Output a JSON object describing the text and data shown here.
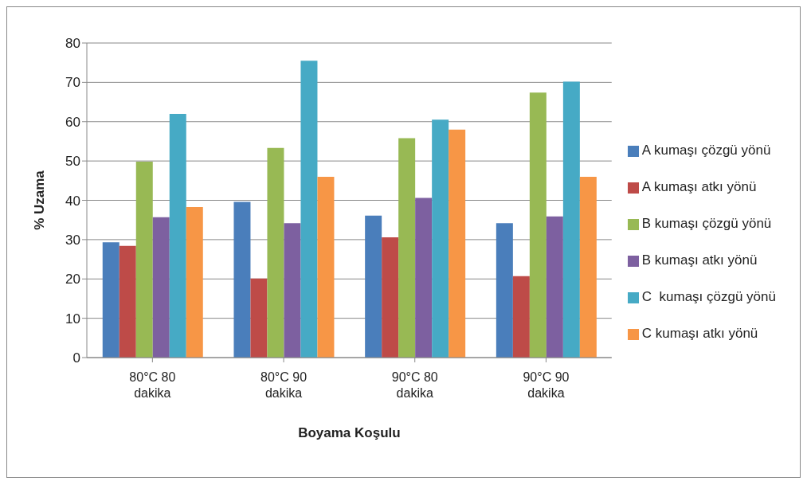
{
  "chart_data": {
    "type": "bar",
    "xlabel": "Boyama Koşulu",
    "ylabel": "% Uzama",
    "categories": [
      "80°C 80 dakika",
      "80°C 90 dakika",
      "90°C 80 dakika",
      "90°C 90 dakika"
    ],
    "series": [
      {
        "name": "A kumaşı çözgü yönü",
        "color": "#4a7ebb",
        "values": [
          29.3,
          39.6,
          36.1,
          34.2
        ]
      },
      {
        "name": "A kumaşı atkı yönü",
        "color": "#be4b48",
        "values": [
          28.4,
          20.1,
          30.6,
          20.7
        ]
      },
      {
        "name": "B kumaşı çözgü yönü",
        "color": "#98b954",
        "values": [
          49.8,
          53.3,
          55.8,
          67.4
        ]
      },
      {
        "name": "B kumaşı atkı yönü",
        "color": "#7d60a0",
        "values": [
          35.7,
          34.2,
          40.6,
          35.9
        ]
      },
      {
        "name": "C  kumaşı çözgü yönü",
        "color": "#46aac5",
        "values": [
          62,
          75.5,
          60.5,
          70.2
        ]
      },
      {
        "name": "C kumaşı atkı yönü",
        "color": "#f79646",
        "values": [
          38.3,
          46,
          58,
          46
        ]
      }
    ],
    "ylim": [
      0,
      80
    ],
    "yticks": [
      0,
      10,
      20,
      30,
      40,
      50,
      60,
      70,
      80
    ],
    "grid": "y",
    "legend": "right"
  }
}
